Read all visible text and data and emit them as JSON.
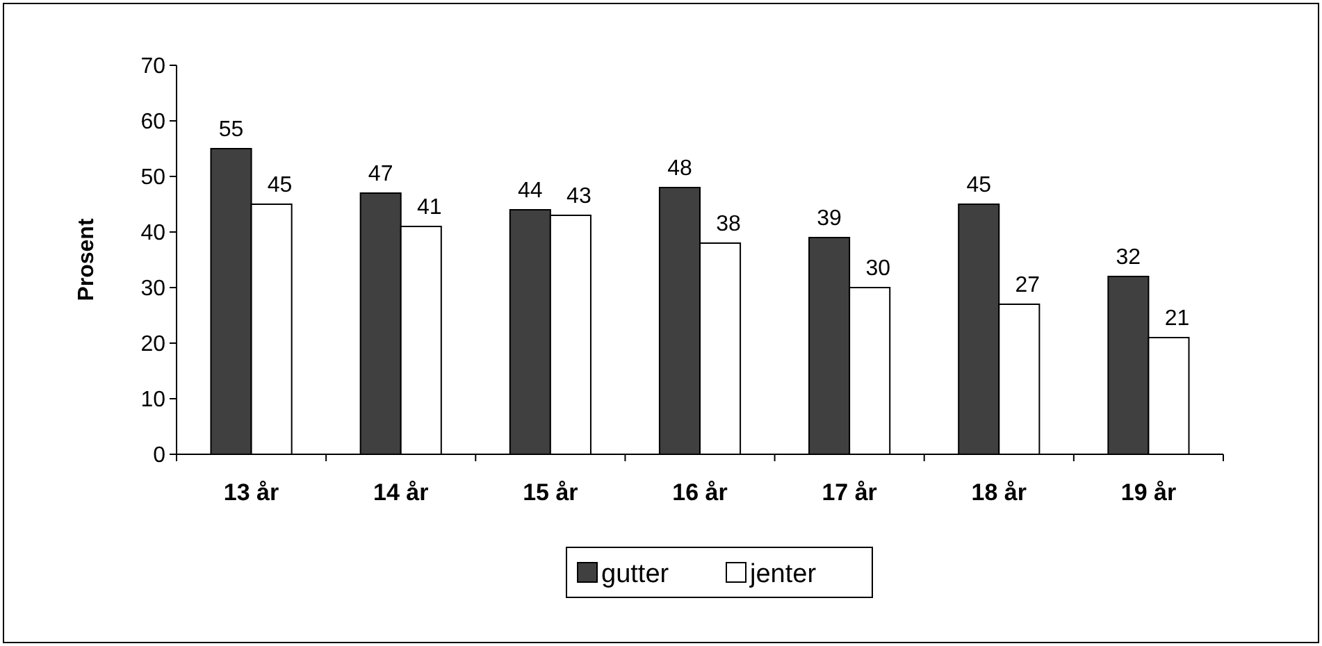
{
  "chart_data": {
    "type": "bar",
    "ylabel": "Prosent",
    "categories": [
      "13 år",
      "14 år",
      "15 år",
      "16 år",
      "17 år",
      "18 år",
      "19 år"
    ],
    "series": [
      {
        "name": "gutter",
        "color": "#404040",
        "values": [
          55,
          47,
          44,
          48,
          39,
          45,
          32
        ]
      },
      {
        "name": "jenter",
        "color": "#ffffff",
        "values": [
          45,
          41,
          43,
          38,
          30,
          27,
          21
        ]
      }
    ],
    "ylim": [
      0,
      70
    ],
    "yticks": [
      0,
      10,
      20,
      30,
      40,
      50,
      60,
      70
    ],
    "grid": false,
    "legend": "bottom",
    "data_labels": true
  }
}
